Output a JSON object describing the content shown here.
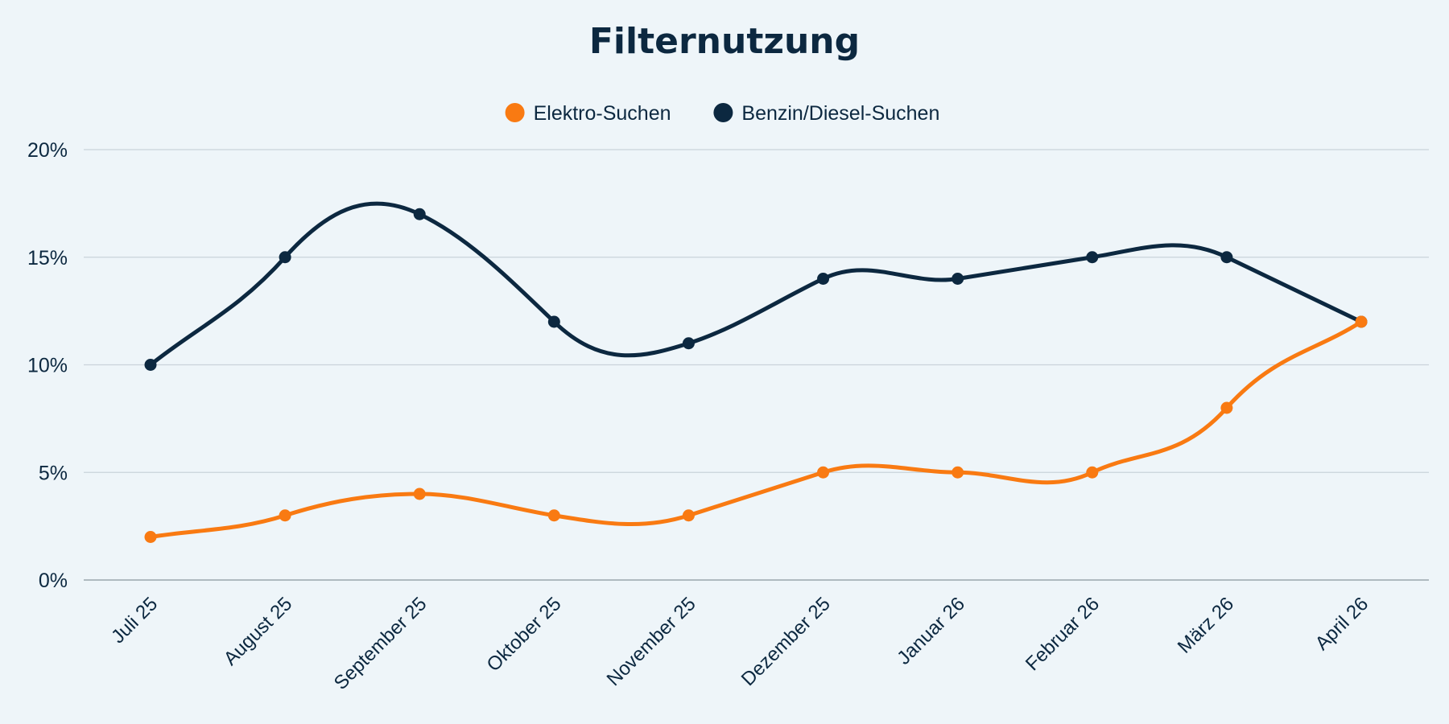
{
  "chart_data": {
    "type": "line",
    "title": "Filternutzung",
    "categories": [
      "Juli 25",
      "August 25",
      "September 25",
      "Oktober 25",
      "November 25",
      "Dezember 25",
      "Januar 26",
      "Februar 26",
      "März 26",
      "April 26"
    ],
    "series": [
      {
        "name": "Elektro-Suchen",
        "color": "#f97a12",
        "values": [
          2,
          3,
          4,
          3,
          3,
          5,
          5,
          5,
          8,
          12
        ]
      },
      {
        "name": "Benzin/Diesel-Suchen",
        "color": "#0c2840",
        "values": [
          10,
          15,
          17,
          12,
          11,
          14,
          14,
          15,
          15,
          12
        ]
      }
    ],
    "ylim": [
      0,
      20
    ],
    "yticks": [
      0,
      5,
      10,
      15,
      20
    ],
    "ytick_labels": [
      "0%",
      "5%",
      "10%",
      "15%",
      "20%"
    ],
    "xlabel": "",
    "ylabel": "",
    "grid": true,
    "legend": "top-center",
    "smooth": true
  }
}
